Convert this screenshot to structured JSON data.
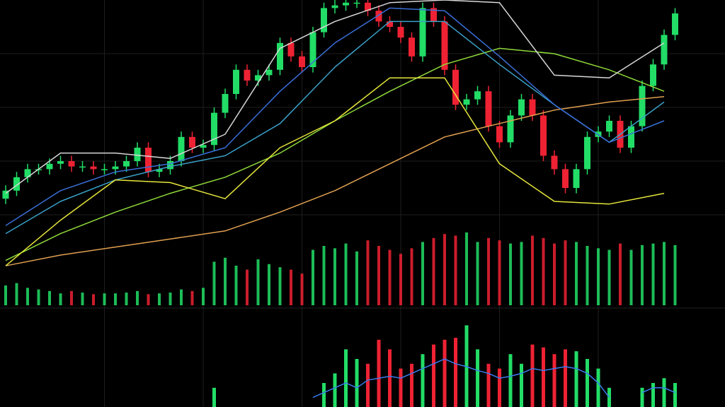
{
  "chart_data": {
    "type": "candlestick",
    "ylim": [
      0,
      100
    ],
    "yticks": [
      20,
      40,
      60,
      80
    ],
    "xticks": [
      9,
      18,
      27,
      36,
      45,
      54
    ],
    "grid": true,
    "up_color": "#22dd66",
    "down_color": "#ee2233",
    "open": [
      26,
      29,
      34,
      37,
      37,
      39,
      40,
      38,
      38,
      37,
      37,
      38,
      40,
      45,
      36,
      37,
      40,
      49,
      45,
      46,
      58,
      65,
      74,
      70,
      72,
      74,
      84,
      79,
      75,
      88,
      97,
      98,
      99,
      99,
      96,
      92,
      90,
      86,
      79,
      97,
      92,
      74,
      61,
      63,
      66,
      53,
      47,
      57,
      63,
      57,
      42,
      37,
      30,
      37,
      49,
      51,
      55,
      45,
      53,
      68,
      76,
      87
    ],
    "high": [
      31,
      36,
      39,
      39,
      41,
      42,
      42,
      40,
      40,
      39,
      40,
      42,
      47,
      47,
      39,
      42,
      51,
      51,
      48,
      60,
      67,
      76,
      76,
      74,
      76,
      86,
      86,
      81,
      90,
      99,
      100,
      100,
      100,
      100,
      98,
      94,
      92,
      88,
      99,
      99,
      94,
      76,
      65,
      68,
      68,
      55,
      59,
      65,
      65,
      59,
      44,
      39,
      39,
      51,
      53,
      57,
      57,
      55,
      70,
      78,
      89,
      97
    ],
    "low": [
      24,
      27,
      32,
      35,
      35,
      37,
      36,
      36,
      35,
      35,
      35,
      36,
      38,
      34,
      34,
      35,
      38,
      43,
      43,
      44,
      56,
      63,
      68,
      68,
      70,
      72,
      77,
      73,
      73,
      86,
      95,
      96,
      97,
      94,
      90,
      88,
      84,
      77,
      77,
      90,
      72,
      59,
      59,
      61,
      51,
      45,
      45,
      55,
      55,
      40,
      35,
      28,
      28,
      35,
      47,
      49,
      43,
      43,
      51,
      66,
      74,
      85
    ],
    "close": [
      29,
      34,
      37,
      37,
      39,
      40,
      38,
      38,
      37,
      37,
      38,
      40,
      45,
      36,
      37,
      40,
      49,
      45,
      46,
      58,
      65,
      74,
      70,
      72,
      74,
      84,
      79,
      75,
      88,
      97,
      98,
      99,
      99,
      96,
      92,
      90,
      86,
      79,
      97,
      92,
      74,
      61,
      63,
      66,
      53,
      47,
      57,
      63,
      57,
      42,
      37,
      30,
      37,
      49,
      51,
      55,
      45,
      53,
      68,
      76,
      87,
      95
    ],
    "ma_x": [
      0,
      5,
      10,
      15,
      20,
      25,
      30,
      35,
      40,
      45,
      50,
      55,
      60
    ],
    "series": [
      {
        "color": "#e0a050",
        "values": [
          1,
          5,
          8,
          11,
          14,
          21,
          29,
          39,
          49,
          54,
          59,
          62,
          64
        ]
      },
      {
        "color": "#8fd93a",
        "values": [
          3,
          13,
          21,
          28,
          34,
          43,
          55,
          66,
          76,
          82,
          80,
          74,
          66
        ]
      },
      {
        "color": "#3aa0c8",
        "values": [
          13,
          25,
          33,
          38,
          42,
          54,
          75,
          92,
          92,
          76,
          61,
          47,
          62
        ]
      },
      {
        "color": "#3a6fd8",
        "values": [
          16,
          29,
          36,
          39,
          45,
          66,
          84,
          97,
          96,
          79,
          61,
          47,
          55
        ]
      },
      {
        "color": "#d8d8d8",
        "values": [
          28,
          43,
          43,
          41,
          50,
          82,
          92,
          99,
          100,
          99,
          72,
          71,
          84
        ]
      },
      {
        "color": "#e6e63c",
        "values": [
          1,
          18,
          33,
          32,
          26,
          45,
          55,
          71,
          71,
          39,
          25,
          24,
          28
        ]
      }
    ],
    "volume": {
      "ylim": [
        0,
        100
      ],
      "values": [
        25,
        28,
        22,
        20,
        18,
        15,
        18,
        16,
        14,
        15,
        15,
        16,
        18,
        14,
        15,
        16,
        20,
        18,
        22,
        55,
        60,
        50,
        45,
        58,
        52,
        48,
        45,
        40,
        70,
        75,
        72,
        78,
        68,
        82,
        75,
        70,
        65,
        72,
        80,
        85,
        90,
        88,
        92,
        80,
        85,
        82,
        78,
        80,
        88,
        85,
        78,
        82,
        80,
        75,
        72,
        70,
        78,
        70,
        76,
        78,
        80,
        76
      ]
    },
    "macd": {
      "ylim": [
        0,
        100
      ],
      "values": [
        0,
        0,
        0,
        0,
        0,
        0,
        0,
        0,
        0,
        0,
        0,
        0,
        0,
        0,
        0,
        0,
        0,
        0,
        0,
        20,
        0,
        0,
        0,
        0,
        0,
        0,
        0,
        0,
        0,
        25,
        35,
        60,
        50,
        45,
        70,
        60,
        40,
        45,
        55,
        65,
        70,
        72,
        85,
        60,
        45,
        40,
        55,
        45,
        65,
        62,
        55,
        60,
        58,
        50,
        40,
        20,
        0,
        0,
        20,
        25,
        30,
        25
      ],
      "signal": {
        "color": "#3a7bf0",
        "values": [
          null,
          null,
          null,
          null,
          null,
          null,
          null,
          null,
          null,
          null,
          null,
          null,
          null,
          null,
          null,
          null,
          null,
          null,
          null,
          null,
          null,
          null,
          null,
          null,
          null,
          null,
          null,
          null,
          10,
          15,
          20,
          25,
          20,
          28,
          30,
          32,
          30,
          35,
          40,
          45,
          50,
          45,
          42,
          38,
          35,
          30,
          32,
          35,
          40,
          38,
          40,
          42,
          40,
          35,
          25,
          10,
          null,
          null,
          15,
          20,
          20,
          15
        ]
      }
    }
  }
}
